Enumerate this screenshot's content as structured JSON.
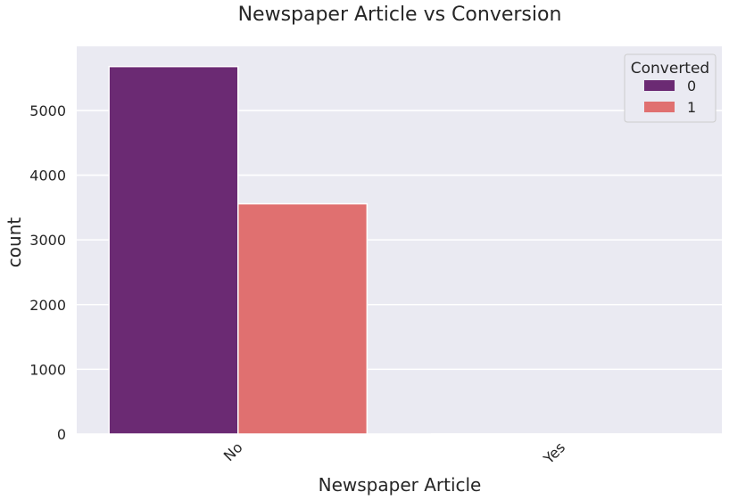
{
  "chart_data": {
    "type": "bar",
    "title": "Newspaper Article vs Conversion",
    "xlabel": "Newspaper Article",
    "ylabel": "count",
    "categories": [
      "No",
      "Yes"
    ],
    "series": [
      {
        "name": "0",
        "values": [
          5678,
          1
        ],
        "color": "#6b2a73"
      },
      {
        "name": "1",
        "values": [
          3558,
          1
        ],
        "color": "#e07070"
      }
    ],
    "ylim": [
      0,
      5990
    ],
    "yticks": [
      0,
      1000,
      2000,
      3000,
      4000,
      5000
    ],
    "grid": true,
    "legend": {
      "title": "Converted",
      "placement": "top-right"
    },
    "colors": {
      "background": "#eaeaf2",
      "grid": "#ffffff"
    }
  }
}
